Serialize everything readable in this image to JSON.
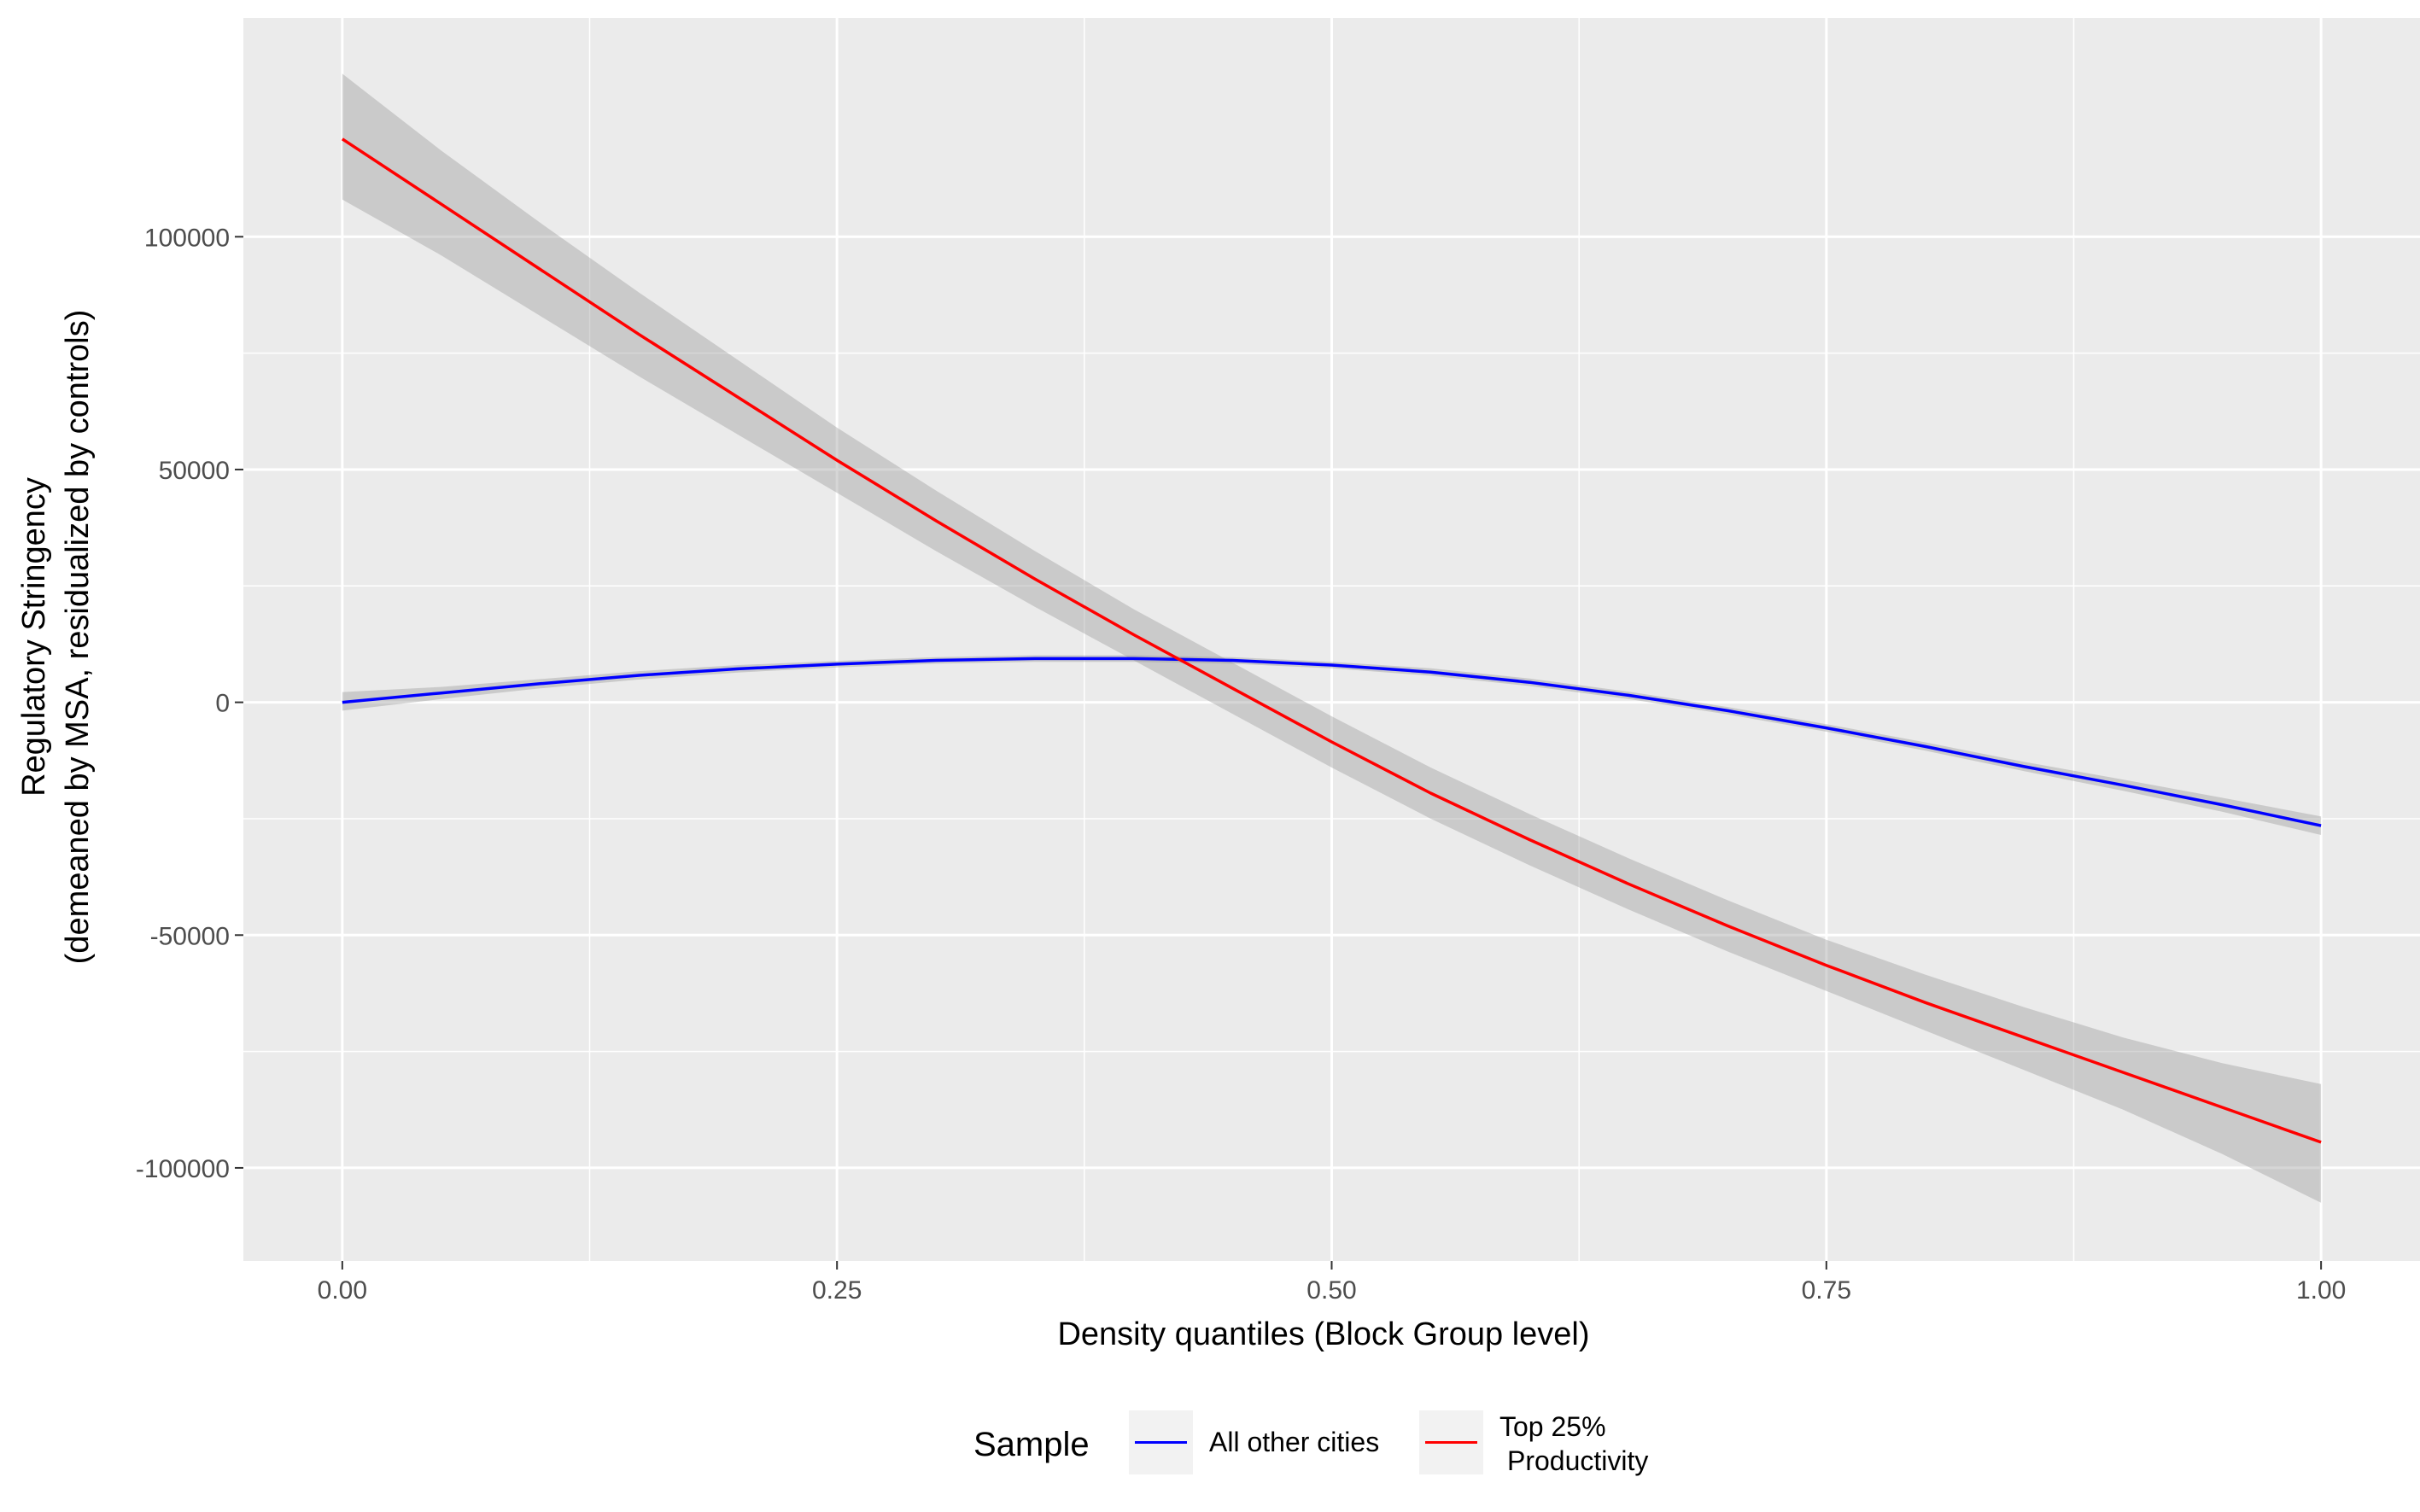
{
  "chart_data": {
    "type": "line",
    "title": "",
    "xlabel": "Density quantiles (Block Group level)",
    "ylabel": [
      "Regulatory Stringency",
      "(demeaned by MSA, residualized by controls)"
    ],
    "xlim": [
      -0.05,
      1.05
    ],
    "ylim": [
      -120000,
      147000
    ],
    "x_ticks": [
      0.0,
      0.25,
      0.5,
      0.75,
      1.0
    ],
    "x_tick_labels": [
      "0.00",
      "0.25",
      "0.50",
      "0.75",
      "1.00"
    ],
    "y_ticks": [
      -100000,
      -50000,
      0,
      50000,
      100000
    ],
    "y_tick_labels": [
      "-100000",
      "-50000",
      "0",
      "50000",
      "100000"
    ],
    "grid": true,
    "legend": {
      "title": "Sample",
      "placement": "bottom",
      "entries": [
        {
          "label": [
            "All other cities"
          ],
          "color": "#0000ff"
        },
        {
          "label": [
            "Top 25%",
            "Productivity"
          ],
          "color": "#ff0000"
        }
      ]
    },
    "series": [
      {
        "color": "#0000ff",
        "x": [
          0.0,
          0.05,
          0.1,
          0.15,
          0.2,
          0.25,
          0.3,
          0.35,
          0.4,
          0.45,
          0.5,
          0.55,
          0.6,
          0.65,
          0.7,
          0.75,
          0.8,
          0.85,
          0.9,
          0.95,
          1.0
        ],
        "y": [
          0,
          2000,
          4000,
          5800,
          7200,
          8200,
          9000,
          9400,
          9400,
          9000,
          8000,
          6500,
          4300,
          1500,
          -1800,
          -5500,
          -9500,
          -13800,
          -17800,
          -22000,
          -26500
        ],
        "lower": [
          -1800,
          700,
          3000,
          4900,
          6400,
          7500,
          8300,
          8700,
          8700,
          8300,
          7300,
          5700,
          3500,
          700,
          -2600,
          -6300,
          -10400,
          -14800,
          -19000,
          -23500,
          -28500
        ],
        "upper": [
          2200,
          3300,
          5000,
          6700,
          8000,
          8900,
          9700,
          10100,
          10100,
          9700,
          8700,
          7300,
          5100,
          2300,
          -1000,
          -4700,
          -8600,
          -12800,
          -16600,
          -20500,
          -24500
        ]
      },
      {
        "color": "#ff0000",
        "x": [
          0.0,
          0.05,
          0.1,
          0.15,
          0.2,
          0.25,
          0.3,
          0.35,
          0.4,
          0.45,
          0.5,
          0.55,
          0.6,
          0.65,
          0.7,
          0.75,
          0.8,
          0.85,
          0.9,
          0.95,
          1.0
        ],
        "y": [
          121000,
          107000,
          93000,
          79000,
          65500,
          52000,
          39000,
          26500,
          14500,
          3000,
          -8500,
          -19500,
          -29500,
          -39000,
          -48000,
          -56500,
          -64500,
          -72000,
          -79500,
          -87000,
          -94500
        ],
        "lower": [
          108000,
          96000,
          83000,
          70000,
          57500,
          45000,
          32500,
          20500,
          9000,
          -2500,
          -14000,
          -25000,
          -35000,
          -44500,
          -53500,
          -62000,
          -70500,
          -79000,
          -87500,
          -97000,
          -107500
        ],
        "upper": [
          135000,
          118500,
          103000,
          88000,
          73500,
          59000,
          45500,
          32500,
          20000,
          8500,
          -3000,
          -14000,
          -24000,
          -33500,
          -42500,
          -51000,
          -58500,
          -65500,
          -72000,
          -77500,
          -82000
        ]
      }
    ]
  }
}
